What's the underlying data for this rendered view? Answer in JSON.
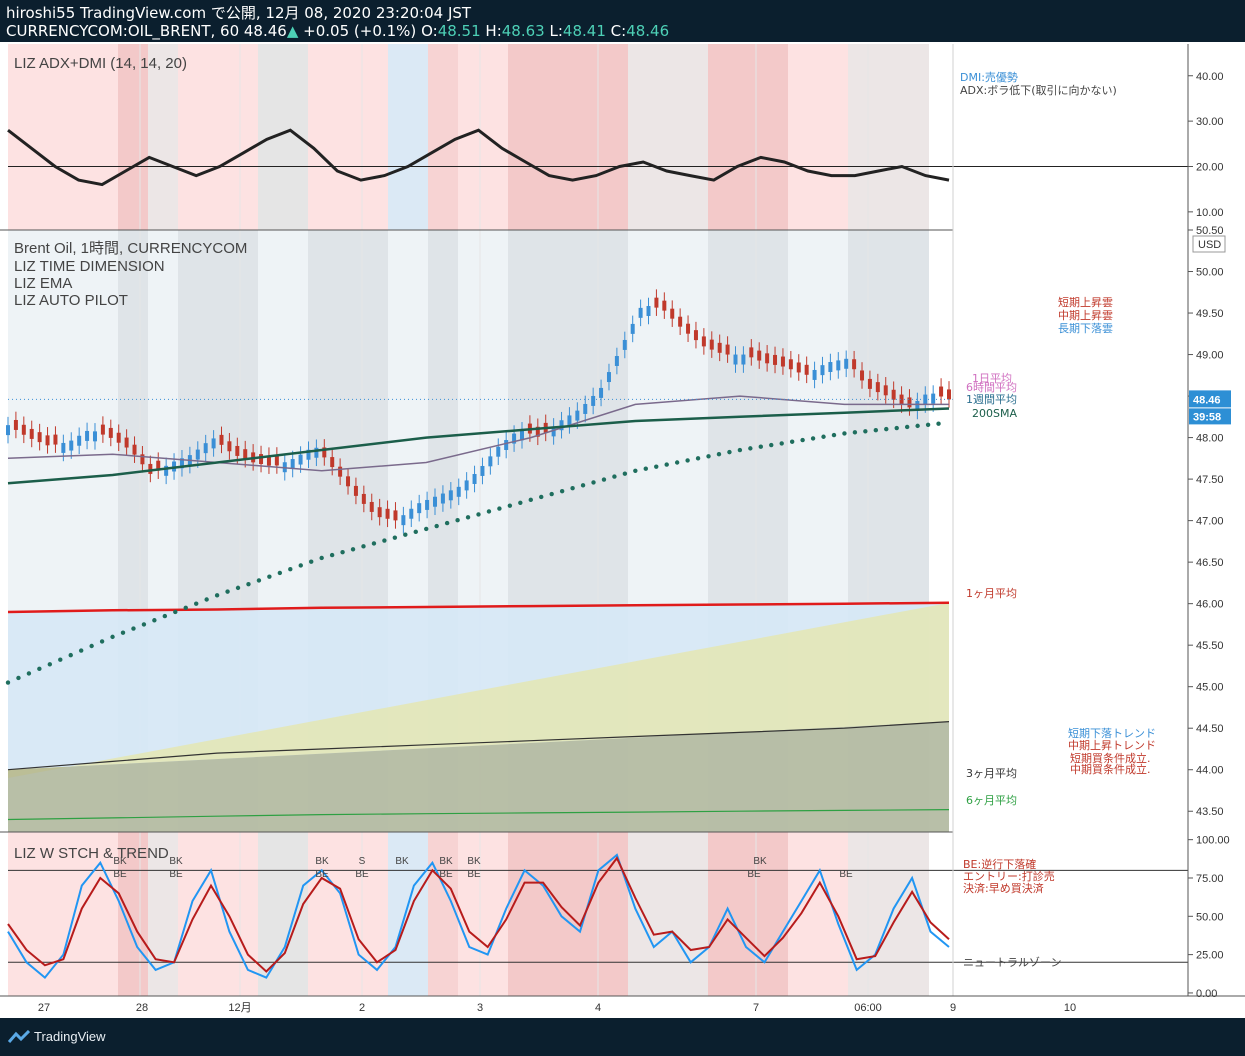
{
  "header": {
    "publish_line": "hiroshi55 TradingView.com で公開, 12月 08, 2020 23:20:04 JST",
    "symbol": "CURRENCYCOM:OIL_BRENT, 60",
    "last": "48.46",
    "change_arrow": "▲",
    "change": "+0.05 (+0.1%)",
    "o_label": "O:",
    "o": "48.51",
    "h_label": "H:",
    "h": "48.63",
    "l_label": "L:",
    "l": "48.41",
    "c_label": "C:",
    "c": "48.46"
  },
  "footer": {
    "brand": "TradingView",
    "icon": "tradingview-logo-icon"
  },
  "colors": {
    "up": "#4dd0b6",
    "down": "#d62728",
    "candle_up": "#3a8fd6",
    "candle_down": "#c0392b",
    "red_line": "#e01b1b",
    "teal_dots": "#1f6e5e"
  },
  "chart_data": [
    {
      "type": "line",
      "title": "LIZ ADX+DMI (14, 14, 20)",
      "ylim": [
        6,
        47
      ],
      "y_ticks": [
        "40.00",
        "30.00",
        "20.00",
        "10.00"
      ],
      "notes": [
        "DMI:売優勢",
        "ADX:ボラ低下(取引に向かない)"
      ],
      "series": [
        {
          "values": [
            28,
            24,
            20,
            17,
            16,
            19,
            22,
            20,
            18,
            20,
            23,
            26,
            28,
            24,
            19,
            17,
            18,
            20,
            23,
            26,
            28,
            24,
            21,
            18,
            17,
            18,
            20,
            21,
            19,
            18,
            17,
            20,
            22,
            21,
            19,
            18,
            18,
            19,
            20,
            18,
            17
          ]
        }
      ]
    },
    {
      "type": "line",
      "title": "Brent Oil, 1時間, CURRENCYCOM",
      "subtitles": [
        "LIZ TIME DIMENSION",
        "LIZ EMA",
        "LIZ AUTO PILOT"
      ],
      "ylim": [
        43.25,
        50.5
      ],
      "y_ticks": [
        "50.50",
        "50.00",
        "49.50",
        "49.00",
        "48.50",
        "48.00",
        "47.50",
        "47.00",
        "46.50",
        "46.00",
        "45.50",
        "45.00",
        "44.50",
        "44.00",
        "43.50"
      ],
      "unit": "USD",
      "price_tag": "48.46",
      "countdown": "39:58",
      "price": [
        48.15,
        48.0,
        47.9,
        47.95,
        48.1,
        48.0,
        47.85,
        47.55,
        47.7,
        47.8,
        48.0,
        47.8,
        47.7,
        47.65,
        47.75,
        47.9,
        47.6,
        47.3,
        47.05,
        47.0,
        47.2,
        47.3,
        47.4,
        47.6,
        47.9,
        48.1,
        48.0,
        48.2,
        48.35,
        48.6,
        49.1,
        49.6,
        49.55,
        49.3,
        49.1,
        49.0,
        49.0,
        48.9,
        48.85,
        48.75,
        48.9,
        48.95,
        48.6,
        48.5,
        48.35,
        48.55,
        48.46
      ],
      "moving_averages": {
        "200SMA": [
          47.45,
          47.55,
          47.7,
          47.85,
          48.0,
          48.1,
          48.2,
          48.25,
          48.3,
          48.35
        ],
        "1週間平均": [
          47.75,
          47.8,
          47.7,
          47.6,
          47.7,
          48.0,
          48.4,
          48.5,
          48.4,
          48.4
        ],
        "1ヶ月平均": [
          45.9,
          45.92,
          45.93,
          45.95,
          45.96,
          45.97,
          45.98,
          45.99,
          46.0,
          46.01
        ],
        "3ヶ月平均": [
          44.0,
          44.1,
          44.2,
          44.25,
          44.3,
          44.35,
          44.4,
          44.45,
          44.5,
          44.58
        ],
        "6ヶ月平均": [
          43.4,
          43.42,
          43.44,
          43.46,
          43.47,
          43.48,
          43.49,
          43.5,
          43.51,
          43.52
        ]
      },
      "labels_right": [
        "短期上昇雲",
        "中期上昇雲",
        "長期下落雲",
        "1日平均",
        "6時間平均",
        "1週間平均",
        "200SMA",
        "1ヶ月平均",
        "3ヶ月平均",
        "6ヶ月平均",
        "短期下落トレンド",
        "中期上昇トレンド",
        "短期買条件成立.",
        "中期買条件成立."
      ]
    },
    {
      "type": "line",
      "title": "LIZ W STCH & TREND",
      "ylim": [
        -2,
        105
      ],
      "y_ticks": [
        "100.00",
        "75.00",
        "50.00",
        "25.00",
        "0.00"
      ],
      "notes": [
        "BE:逆行下落確",
        "エントリー:打診売",
        "決済:早め買決済",
        "ニュートラルゾーン"
      ],
      "signals": [
        "BK",
        "BE",
        "BK",
        "BE",
        "BK",
        "BE",
        "S",
        "BE",
        "BK",
        "BE",
        "BK",
        "BE",
        "BK",
        "BE",
        "BK",
        "BE"
      ],
      "series": [
        {
          "values": [
            40,
            20,
            10,
            25,
            70,
            85,
            60,
            30,
            15,
            20,
            60,
            80,
            40,
            15,
            10,
            30,
            70,
            80,
            65,
            25,
            15,
            30,
            70,
            85,
            60,
            30,
            25,
            55,
            80,
            70,
            50,
            40,
            80,
            90,
            55,
            30,
            40,
            20,
            30,
            55,
            30,
            20,
            40,
            60,
            80,
            45,
            15,
            25,
            55,
            75,
            40,
            30
          ]
        },
        {
          "values": [
            45,
            28,
            18,
            22,
            55,
            75,
            65,
            40,
            22,
            20,
            48,
            70,
            50,
            25,
            14,
            26,
            58,
            75,
            68,
            35,
            20,
            28,
            60,
            80,
            68,
            40,
            30,
            48,
            72,
            72,
            56,
            44,
            72,
            88,
            62,
            38,
            40,
            28,
            30,
            48,
            36,
            24,
            36,
            52,
            72,
            50,
            22,
            24,
            46,
            66,
            46,
            35
          ]
        }
      ]
    }
  ],
  "x_ticks": [
    "27",
    "28",
    "12月",
    "2",
    "3",
    "4",
    "7",
    "06:00",
    "9",
    "10"
  ]
}
